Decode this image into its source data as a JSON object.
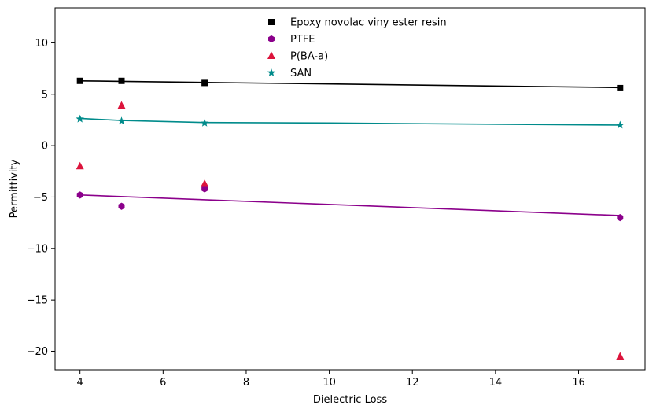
{
  "chart_data": {
    "type": "scatter",
    "title": "",
    "xlabel": "Dielectric Loss",
    "ylabel": "Permittivity",
    "xlim": [
      3.4,
      17.6
    ],
    "ylim": [
      -21.8,
      13.4
    ],
    "xticks": [
      4,
      6,
      8,
      10,
      12,
      14,
      16
    ],
    "yticks": [
      10,
      5,
      0,
      -5,
      -10,
      -15,
      -20
    ],
    "xtick_labels": [
      "4",
      "6",
      "8",
      "10",
      "12",
      "14",
      "16"
    ],
    "ytick_labels": [
      "10",
      "5",
      "0",
      "−10",
      "−15",
      "−20"
    ],
    "ytick_labels_full": [
      "10",
      "5",
      "0",
      "−5",
      "−10",
      "−15",
      "−20"
    ],
    "grid": false,
    "legend_position": "top-center",
    "series": [
      {
        "name": "Epoxy novolac viny ester resin",
        "color": "#000000",
        "marker": "square",
        "points": [
          [
            4,
            6.3
          ],
          [
            5,
            6.3
          ],
          [
            7,
            6.1
          ],
          [
            17,
            5.6
          ]
        ],
        "trend": [
          [
            4,
            6.3
          ],
          [
            5,
            6.25
          ],
          [
            7,
            6.15
          ],
          [
            17,
            5.65
          ]
        ]
      },
      {
        "name": "PTFE",
        "color": "#8b008b",
        "marker": "hexagon",
        "points": [
          [
            4,
            -4.8
          ],
          [
            5,
            -5.9
          ],
          [
            7,
            -4.2
          ],
          [
            17,
            -7.0
          ]
        ],
        "trend": [
          [
            4,
            -4.8
          ],
          [
            17,
            -6.8
          ]
        ]
      },
      {
        "name": "P(BA-a)",
        "color": "#dc143c",
        "marker": "triangle",
        "points": [
          [
            4,
            -2.0
          ],
          [
            5,
            3.9
          ],
          [
            7,
            -3.7
          ],
          [
            17,
            -20.5
          ]
        ],
        "trend": []
      },
      {
        "name": "SAN",
        "color": "#008b8b",
        "marker": "star",
        "points": [
          [
            4,
            2.6
          ],
          [
            5,
            2.4
          ],
          [
            7,
            2.2
          ],
          [
            17,
            2.0
          ]
        ],
        "trend": [
          [
            4,
            2.65
          ],
          [
            5,
            2.45
          ],
          [
            7,
            2.25
          ],
          [
            10,
            2.2
          ],
          [
            17,
            2.0
          ]
        ]
      }
    ]
  }
}
